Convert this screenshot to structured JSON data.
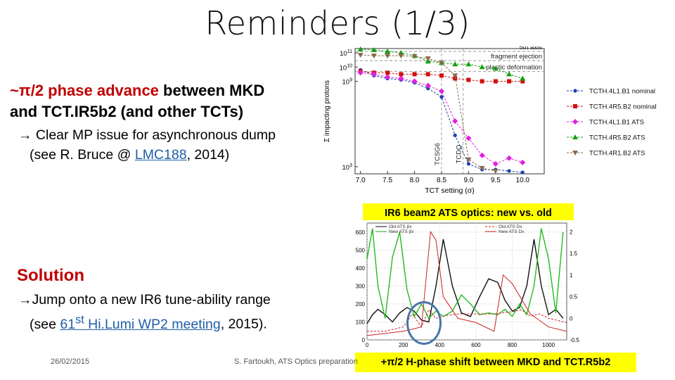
{
  "slide": {
    "title": "Reminders (1/3)",
    "bullet1": {
      "tilde": "~",
      "pi": "π",
      "red_text": "/2 phase advance",
      "black_text": " between MKD",
      "line2": "and TCT.IR5b2 (and other TCTs)"
    },
    "sub1": {
      "arrow": "→",
      "line1": " Clear MP issue for asynchronous dump",
      "line2_pre": "(see R. Bruce @ ",
      "link": "LMC188",
      "line2_post": ", 2014)"
    },
    "solution": {
      "title": "Solution",
      "arrow": "→",
      "line1": "Jump onto a new IR6 tune-ability range",
      "line2_pre": "(see ",
      "link_num": "61",
      "link_sup": "st",
      "link_text": " Hi.Lumi WP2 meeting",
      "line2_post": ", 2015)."
    },
    "caption1": "IR6 beam2 ATS optics: new vs. old",
    "caption2": "+π/2 H-phase shift between MKD and TCT.R5b2",
    "footer": {
      "date": "26/02/2015",
      "author": "S. Fartoukh,  ATS Optics preparation"
    }
  },
  "chart_data": [
    {
      "type": "scatter",
      "xlabel": "TCT setting (σ)",
      "ylabel": "Σ impacting protons",
      "x": [
        7.0,
        7.5,
        8.0,
        8.5,
        9.0,
        9.5,
        10.0
      ],
      "xlim": [
        6.9,
        10.4
      ],
      "ylim_log10": [
        2.5,
        11.3
      ],
      "x_ticks": [
        "7.0",
        "7.5",
        "8.0",
        "8.5",
        "9.0",
        "9.5",
        "10.0"
      ],
      "y_ticks": [
        {
          "base": "10",
          "exp": "11",
          "pos": 11
        },
        {
          "base": "10",
          "exp": "10",
          "pos": 10
        },
        {
          "base": "10",
          "exp": "9",
          "pos": 9
        },
        {
          "base": "10",
          "exp": "3",
          "pos": 3
        }
      ],
      "hlines": [
        {
          "label": "5th axis",
          "y": 11.1
        },
        {
          "label": "fragment ejection",
          "y": 10.45
        },
        {
          "label": "plastic deformation",
          "y": 9.7
        }
      ],
      "vlines": [
        {
          "label": "TCSG6",
          "x": 8.5
        },
        {
          "label": "TCDQ",
          "x": 8.9
        }
      ],
      "series": [
        {
          "name": "TCTH.4L1.B1 nominal",
          "color": "#1a3fb0",
          "marker": "circle",
          "x": [
            7.0,
            7.25,
            7.5,
            7.75,
            8.0,
            8.25,
            8.5,
            8.75,
            9.0,
            9.25,
            9.5,
            9.75,
            10.0
          ],
          "y": [
            9.8,
            9.4,
            9.2,
            9.1,
            8.9,
            8.5,
            7.9,
            5.2,
            3.2,
            2.8,
            2.8,
            2.7,
            2.6
          ]
        },
        {
          "name": "TCTH.4R5.B2 nominal",
          "color": "#d01010",
          "marker": "square",
          "x": [
            7.0,
            7.25,
            7.5,
            7.75,
            8.0,
            8.25,
            8.5,
            8.75,
            9.0,
            9.25,
            9.5,
            9.75,
            10.0
          ],
          "y": [
            9.7,
            9.6,
            9.6,
            9.5,
            9.5,
            9.5,
            9.4,
            9.2,
            9.1,
            9.0,
            9.0,
            9.0,
            9.0
          ]
        },
        {
          "name": "TCTH.4L1.B1 ATS",
          "color": "#e020e0",
          "marker": "diamond",
          "x": [
            7.0,
            7.25,
            7.5,
            7.75,
            8.0,
            8.25,
            8.5,
            8.75,
            9.0,
            9.25,
            9.5,
            9.75,
            10.0
          ],
          "y": [
            9.6,
            9.5,
            9.3,
            9.2,
            9.0,
            8.7,
            8.3,
            6.2,
            5.0,
            3.8,
            3.2,
            3.6,
            3.3
          ]
        },
        {
          "name": "TCTH.4R5.B2 ATS",
          "color": "#10a010",
          "marker": "triangle",
          "x": [
            7.0,
            7.25,
            7.5,
            7.75,
            8.0,
            8.25,
            8.5,
            8.75,
            9.0,
            9.25,
            9.5,
            9.75,
            10.0
          ],
          "y": [
            11.25,
            11.2,
            11.1,
            11.0,
            10.8,
            10.4,
            10.3,
            10.2,
            10.2,
            10.0,
            9.9,
            9.5,
            9.2
          ]
        },
        {
          "name": "TCTH.4R1.B2 ATS",
          "color": "#8a6a4a",
          "marker": "triangle-down",
          "x": [
            7.0,
            7.25,
            7.5,
            7.75,
            8.0,
            8.25,
            8.5,
            8.75,
            9.0,
            9.25,
            9.5
          ],
          "y": [
            10.85,
            10.8,
            10.8,
            10.8,
            10.75,
            10.6,
            10.3,
            9.4,
            3.5,
            2.9,
            2.7
          ]
        }
      ]
    },
    {
      "type": "line",
      "title": "IR6 beam2 ATS optics: new vs. old",
      "x_ticks": [
        "0",
        "200",
        "400",
        "600",
        "800",
        "1000"
      ],
      "y_ticks_left": [
        "0",
        "100",
        "200",
        "300",
        "400",
        "500",
        "600"
      ],
      "y_ticks_right": [
        "-0.5",
        "0",
        "0.5",
        "1",
        "1.5",
        "2"
      ],
      "xlim": [
        0,
        1100
      ],
      "ylim": [
        0,
        650
      ],
      "ylim_right": [
        -0.5,
        2.2
      ],
      "legend_left": [
        "Old ATS βx",
        "New ATS βx"
      ],
      "legend_right": [
        "Old ATS Dx",
        "New ATS Dx"
      ],
      "series": [
        {
          "name": "Old ATS βx",
          "color": "#111111",
          "axis": "left",
          "x": [
            0,
            30,
            60,
            100,
            140,
            180,
            220,
            260,
            300,
            340,
            380,
            420,
            470,
            520,
            570,
            620,
            670,
            720,
            760,
            800,
            840,
            880,
            920,
            960,
            1000,
            1040,
            1080
          ],
          "y": [
            90,
            140,
            170,
            140,
            100,
            150,
            180,
            160,
            110,
            100,
            300,
            560,
            300,
            150,
            130,
            240,
            340,
            320,
            220,
            160,
            180,
            300,
            560,
            300,
            140,
            170,
            120
          ]
        },
        {
          "name": "New ATS βx",
          "color": "#22bb22",
          "axis": "left",
          "x": [
            0,
            30,
            60,
            100,
            140,
            180,
            220,
            260,
            300,
            340,
            380,
            420,
            470,
            520,
            570,
            620,
            670,
            720,
            760,
            800,
            840,
            880,
            920,
            960,
            1000,
            1040,
            1080
          ],
          "y": [
            450,
            620,
            300,
            120,
            460,
            600,
            280,
            130,
            200,
            120,
            160,
            130,
            160,
            250,
            200,
            140,
            150,
            140,
            170,
            130,
            200,
            140,
            300,
            620,
            450,
            150,
            600
          ]
        },
        {
          "name": "Old ATS Dx",
          "color": "#cc2222",
          "axis": "right",
          "x": [
            0,
            100,
            200,
            250,
            300,
            340,
            380,
            420,
            500,
            600,
            700,
            800,
            850,
            900,
            950,
            1000,
            1100
          ],
          "y": [
            -0.3,
            -0.3,
            -0.2,
            0.1,
            -0.2,
            0.2,
            0.0,
            0.05,
            0.1,
            0.1,
            0.1,
            0.15,
            0.2,
            0.05,
            0.1,
            0.0,
            -0.1
          ]
        },
        {
          "name": "New ATS Dx",
          "color": "#cc2222",
          "axis": "right",
          "x": [
            0,
            100,
            200,
            300,
            350,
            380,
            420,
            500,
            600,
            700,
            750,
            800,
            900,
            1000,
            1100
          ],
          "y": [
            -0.4,
            -0.35,
            -0.3,
            -0.2,
            2.0,
            1.8,
            0.5,
            0.0,
            -0.1,
            -0.3,
            1.0,
            0.8,
            0.1,
            -0.2,
            -0.3
          ]
        }
      ]
    }
  ]
}
